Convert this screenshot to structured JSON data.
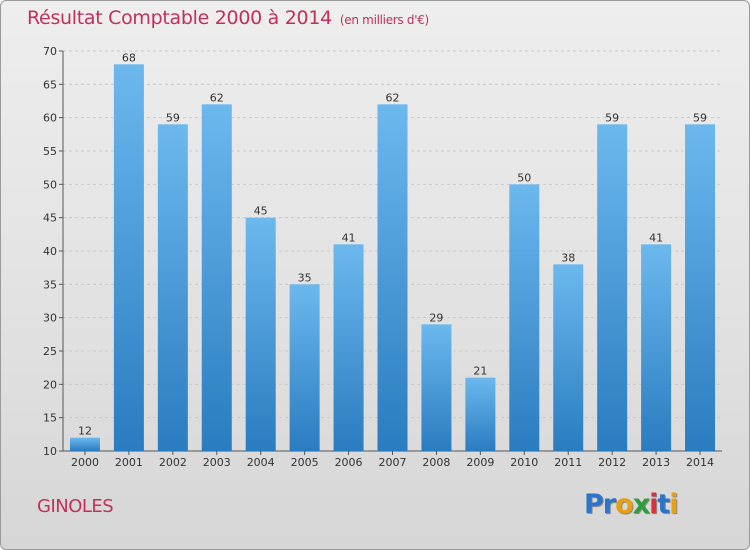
{
  "header": {
    "title": "Résultat Comptable 2000 à 2014",
    "unit": "(en milliers d'€)"
  },
  "commune": "GINOLES",
  "brand": {
    "letters": [
      "P",
      "r",
      "o",
      "x",
      "i",
      "t",
      "i"
    ],
    "colors": [
      "#2b74c9",
      "#2b74c9",
      "#e8a012",
      "#2e9d3a",
      "#d8323a",
      "#2b74c9",
      "#e8a012"
    ]
  },
  "colors": {
    "title": "#c0305a",
    "bar_top": "#6cb8ee",
    "bar_bottom": "#2a7cc0",
    "grid": "#c8c8c8",
    "axis": "#555555"
  },
  "chart_data": {
    "type": "bar",
    "title": "Résultat Comptable 2000 à 2014",
    "subtitle": "(en milliers d'€)",
    "categories": [
      "2000",
      "2001",
      "2002",
      "2003",
      "2004",
      "2005",
      "2006",
      "2007",
      "2008",
      "2009",
      "2010",
      "2011",
      "2012",
      "2013",
      "2014"
    ],
    "values": [
      12,
      68,
      59,
      62,
      45,
      35,
      41,
      62,
      29,
      21,
      50,
      38,
      59,
      41,
      59
    ],
    "ylim": [
      10,
      70
    ],
    "yticks": [
      10,
      15,
      20,
      25,
      30,
      35,
      40,
      45,
      50,
      55,
      60,
      65,
      70
    ],
    "grid": "horizontal dashed",
    "data_labels": true
  }
}
